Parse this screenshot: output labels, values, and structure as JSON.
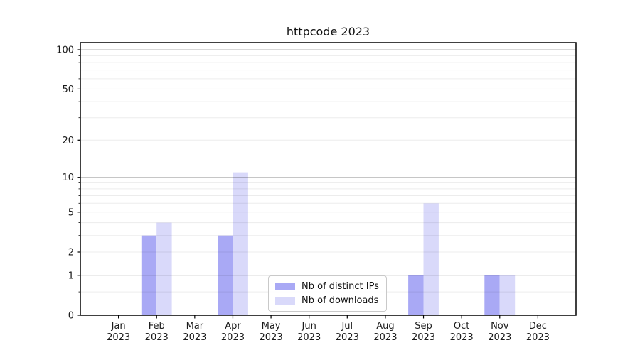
{
  "figure": {
    "background": "#ffffff"
  },
  "chart_data": {
    "type": "bar",
    "title": "httpcode 2023",
    "categories": [
      "Jan",
      "Feb",
      "Mar",
      "Apr",
      "May",
      "Jun",
      "Jul",
      "Aug",
      "Sep",
      "Oct",
      "Nov",
      "Dec"
    ],
    "year_label": "2023",
    "series": [
      {
        "name": "Nb of distinct IPs",
        "color": "#a9a9f5",
        "values": [
          0,
          3,
          0,
          3,
          0,
          0,
          0,
          0,
          1,
          0,
          1,
          0
        ]
      },
      {
        "name": "Nb of downloads",
        "color": "#d9d9fa",
        "values": [
          0,
          4,
          0,
          11,
          0,
          0,
          0,
          0,
          6,
          0,
          1,
          0
        ]
      }
    ],
    "xlabel": "",
    "ylabel": "",
    "yscale": "log1p",
    "yticks": [
      0,
      1,
      2,
      5,
      10,
      20,
      50,
      100
    ],
    "ylim": [
      0,
      113
    ],
    "grid": true,
    "grid_major_color": "#b3b3b3",
    "grid_minor_color": "#ececec",
    "legend_position": "lower center"
  }
}
